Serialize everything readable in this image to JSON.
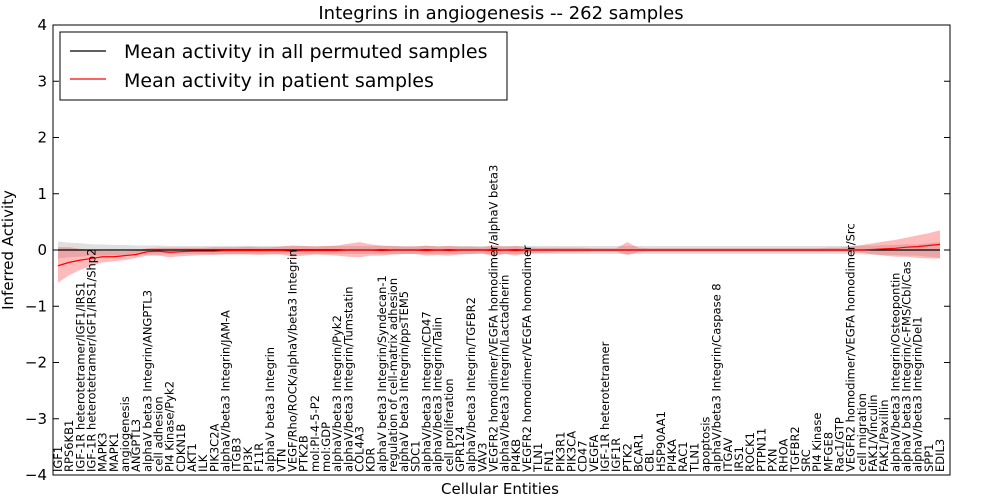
{
  "chart_data": {
    "type": "line",
    "title": "Integrins in angiogenesis -- 262 samples",
    "xlabel": "Cellular Entities",
    "ylabel": "Inferred Activity",
    "ylim": [
      -4,
      4
    ],
    "yticks": [
      "−4",
      "−3",
      "−2",
      "−1",
      "0",
      "1",
      "2",
      "3",
      "4"
    ],
    "grid": false,
    "legend_position": "top-left",
    "legend": [
      {
        "label": "Mean activity in all permuted samples",
        "color": "#000000"
      },
      {
        "label": "Mean activity in patient samples",
        "color": "#ff0000"
      }
    ],
    "categories": [
      "IGF1",
      "RPS6KB1",
      "IGF-1R heterotetramer/IGF1/IRS1",
      "IGF-1R heterotetramer/IGF1/IRS1/Shp2",
      "MAPK3",
      "MAPK1",
      "angiogenesis",
      "ANGPTL3",
      "alphaV beta3 Integrin/ANGPTL3",
      "cell adhesion",
      "PI4 Kinase/Pyk2",
      "CDKN1B",
      "AKT1",
      "ILK",
      "PIK3C2A",
      "alphaV/beta3 Integrin/JAM-A",
      "ITGB3",
      "PI3K",
      "F11R",
      "alphaV beta3 Integrin",
      "VTN",
      "VEGF/Rho/ROCK/alphaV/beta3 Integrin",
      "PTK2B",
      "mol:PI-4-5-P2",
      "mol:GDP",
      "alphaV/beta3 Integrin/Pyk2",
      "alphaV/beta3 Integrin/Tumstatin",
      "COL4A3",
      "KDR",
      "alphaV beta3 Integrin/Syndecan-1",
      "regulation of cell-matrix adhesion",
      "alphaV beta3 Integrin/ppsTEM5",
      "SDC1",
      "alphaV/beta3 Integrin/CD47",
      "alphaV/beta3 Integrin/Talin",
      "cell proliferation",
      "GPR124",
      "alphaV/beta3 Integrin/TGFBR2",
      "VAV3",
      "VEGFR2 homodimer/VEGFA homodimer/alphaV beta3",
      "alphaV/beta3 Integrin/Lactadherin",
      "PI4KB",
      "VEGFR2 homodimer/VEGFA homodimer",
      "TLN1",
      "FN1",
      "PIK3R1",
      "PIK3CA",
      "CD47",
      "VEGFA",
      "IGF-1R heterotetramer",
      "IGF1R",
      "PTK2",
      "BCAR1",
      "CBL",
      "HSP90AA1",
      "PI4KA",
      "RAC1",
      "TLN1",
      "apoptosis",
      "alphaV/beta3 Integrin/Caspase 8",
      "ITGAV",
      "IRS1",
      "ROCK1",
      "PTPN11",
      "PXN",
      "RHOA",
      "TGFBR2",
      "SRC",
      "PI4 Kinase",
      "MFGE8",
      "Rac1/GTP",
      "VEGFR2 homodimer/VEGFA homodimer/Src",
      "cell migration",
      "FAK1/Vinculin",
      "FAK1/Paxillin",
      "alphaV/beta3 Integrin/Osteopontin",
      "alphaV beta3 Integrin/c-FMS/Cbl/Cas",
      "alphaV/beta3 Integrin/Del1",
      "SPP1",
      "EDIL3"
    ],
    "series": [
      {
        "name": "Mean activity in all permuted samples",
        "color": "#000000",
        "values": [
          0,
          0,
          0,
          0,
          0,
          0,
          0,
          0,
          0,
          0,
          0,
          0,
          0,
          0,
          0,
          0,
          0,
          0,
          0,
          0,
          0,
          0,
          0,
          0,
          0,
          0,
          0,
          0,
          0,
          0,
          0,
          0,
          0,
          0,
          0,
          0,
          0,
          0,
          0,
          0,
          0,
          0,
          0,
          0,
          0,
          0,
          0,
          0,
          0,
          0,
          0,
          0,
          0,
          0,
          0,
          0,
          0,
          0,
          0,
          0,
          0,
          0,
          0,
          0,
          0,
          0,
          0,
          0,
          0,
          0,
          0,
          0,
          0,
          0,
          0,
          0,
          0,
          0,
          0,
          0
        ],
        "lower": [
          -0.15,
          -0.13,
          -0.12,
          -0.1,
          -0.1,
          -0.09,
          -0.09,
          -0.08,
          -0.08,
          -0.08,
          -0.07,
          -0.07,
          -0.07,
          -0.07,
          -0.07,
          -0.07,
          -0.07,
          -0.07,
          -0.07,
          -0.07,
          -0.07,
          -0.07,
          -0.07,
          -0.07,
          -0.07,
          -0.07,
          -0.07,
          -0.07,
          -0.07,
          -0.07,
          -0.07,
          -0.07,
          -0.07,
          -0.07,
          -0.07,
          -0.07,
          -0.07,
          -0.07,
          -0.07,
          -0.07,
          -0.07,
          -0.07,
          -0.07,
          -0.07,
          -0.07,
          -0.07,
          -0.07,
          -0.07,
          -0.07,
          -0.07,
          -0.07,
          -0.07,
          -0.07,
          -0.07,
          -0.07,
          -0.07,
          -0.07,
          -0.07,
          -0.07,
          -0.07,
          -0.07,
          -0.07,
          -0.07,
          -0.07,
          -0.07,
          -0.07,
          -0.07,
          -0.07,
          -0.07,
          -0.07,
          -0.07,
          -0.07,
          -0.08,
          -0.08,
          -0.09,
          -0.09,
          -0.1,
          -0.1,
          -0.12,
          -0.14
        ],
        "upper": [
          0.15,
          0.13,
          0.12,
          0.1,
          0.1,
          0.09,
          0.09,
          0.08,
          0.08,
          0.08,
          0.07,
          0.07,
          0.07,
          0.07,
          0.07,
          0.07,
          0.07,
          0.07,
          0.07,
          0.07,
          0.07,
          0.07,
          0.07,
          0.07,
          0.07,
          0.07,
          0.07,
          0.07,
          0.07,
          0.07,
          0.07,
          0.07,
          0.07,
          0.07,
          0.07,
          0.07,
          0.07,
          0.07,
          0.07,
          0.07,
          0.07,
          0.07,
          0.07,
          0.07,
          0.07,
          0.07,
          0.07,
          0.07,
          0.07,
          0.07,
          0.07,
          0.07,
          0.07,
          0.07,
          0.07,
          0.07,
          0.07,
          0.07,
          0.07,
          0.07,
          0.07,
          0.07,
          0.07,
          0.07,
          0.07,
          0.07,
          0.07,
          0.07,
          0.07,
          0.07,
          0.07,
          0.07,
          0.08,
          0.08,
          0.09,
          0.09,
          0.1,
          0.1,
          0.12,
          0.14
        ]
      },
      {
        "name": "Mean activity in patient samples",
        "color": "#ff0000",
        "values": [
          -0.28,
          -0.22,
          -0.18,
          -0.15,
          -0.12,
          -0.12,
          -0.1,
          -0.08,
          -0.03,
          -0.02,
          -0.04,
          -0.03,
          -0.02,
          -0.02,
          -0.02,
          -0.01,
          -0.01,
          -0.01,
          -0.01,
          -0.01,
          -0.01,
          -0.02,
          -0.01,
          -0.01,
          -0.01,
          -0.01,
          0,
          0,
          0,
          -0.01,
          0,
          0,
          0,
          -0.01,
          0,
          -0.01,
          0,
          0,
          0,
          -0.01,
          0,
          -0.01,
          0,
          0,
          0,
          0,
          0,
          0,
          0,
          0,
          0,
          0,
          0,
          0,
          0,
          0,
          0,
          0,
          0,
          0,
          0,
          0,
          0,
          0,
          0,
          0,
          0,
          0,
          0,
          0,
          0,
          0,
          0,
          0.01,
          0.02,
          0.03,
          0.05,
          0.06,
          0.08,
          0.1
        ],
        "lower": [
          -0.58,
          -0.45,
          -0.35,
          -0.28,
          -0.22,
          -0.2,
          -0.18,
          -0.14,
          -0.1,
          -0.1,
          -0.13,
          -0.11,
          -0.1,
          -0.09,
          -0.09,
          -0.08,
          -0.08,
          -0.08,
          -0.09,
          -0.08,
          -0.08,
          -0.12,
          -0.1,
          -0.08,
          -0.09,
          -0.1,
          -0.12,
          -0.13,
          -0.1,
          -0.1,
          -0.08,
          -0.07,
          -0.07,
          -0.1,
          -0.09,
          -0.1,
          -0.08,
          -0.07,
          -0.06,
          -0.11,
          -0.07,
          -0.1,
          -0.06,
          -0.05,
          -0.05,
          -0.04,
          -0.04,
          -0.04,
          -0.03,
          -0.03,
          -0.03,
          -0.09,
          -0.04,
          -0.03,
          -0.03,
          -0.03,
          -0.03,
          -0.03,
          -0.03,
          -0.03,
          -0.03,
          -0.03,
          -0.03,
          -0.03,
          -0.03,
          -0.03,
          -0.03,
          -0.03,
          -0.03,
          -0.03,
          -0.03,
          -0.04,
          -0.05,
          -0.08,
          -0.1,
          -0.12,
          -0.12,
          -0.14,
          -0.15,
          -0.15
        ],
        "upper": [
          0.05,
          0.05,
          0.02,
          0,
          -0.02,
          -0.02,
          -0.02,
          -0.01,
          0.03,
          0.04,
          0.04,
          0.04,
          0.04,
          0.04,
          0.05,
          0.05,
          0.05,
          0.06,
          0.05,
          0.05,
          0.06,
          0.08,
          0.07,
          0.06,
          0.07,
          0.08,
          0.11,
          0.14,
          0.1,
          0.08,
          0.07,
          0.06,
          0.06,
          0.08,
          0.06,
          0.07,
          0.06,
          0.06,
          0.05,
          0.08,
          0.06,
          0.07,
          0.05,
          0.04,
          0.04,
          0.04,
          0.04,
          0.04,
          0.03,
          0.03,
          0.03,
          0.14,
          0.04,
          0.03,
          0.03,
          0.03,
          0.03,
          0.03,
          0.03,
          0.03,
          0.03,
          0.03,
          0.03,
          0.03,
          0.03,
          0.03,
          0.03,
          0.03,
          0.03,
          0.04,
          0.04,
          0.06,
          0.09,
          0.12,
          0.15,
          0.18,
          0.22,
          0.26,
          0.3,
          0.35
        ]
      }
    ]
  }
}
